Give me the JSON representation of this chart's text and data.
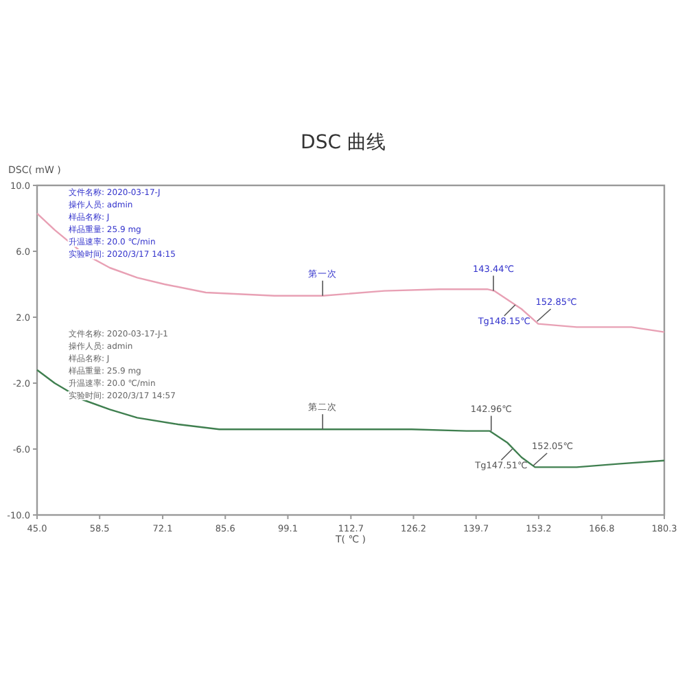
{
  "chart_data": {
    "type": "line",
    "title": "DSC 曲线",
    "xlabel": "T( ℃ )",
    "ylabel": "DSC( mW )",
    "xlim": [
      45.0,
      180.3
    ],
    "xticks": [
      {
        "value": 45.0,
        "label": "45.0"
      },
      58.5,
      72.1,
      85.6,
      99.1,
      112.7,
      126.2,
      139.7,
      153.2,
      166.8,
      180.3
    ],
    "ylim": [
      -10.0,
      10.0
    ],
    "yticks": [
      {
        "value": 10,
        "label": "10.0"
      },
      {
        "value": 6,
        "label": "6.0"
      },
      {
        "value": 2,
        "label": "2.0"
      },
      {
        "value": -2,
        "label": "-2.0"
      },
      {
        "value": -6,
        "label": "-6.0"
      },
      {
        "value": -10,
        "label": "-10.0"
      }
    ],
    "grid": false,
    "marker": "none",
    "line_style": "solid",
    "series": [
      {
        "color": "#e8a0b4",
        "x": [
          45,
          48.8,
          54.8,
          60.7,
          66.6,
          72.5,
          81.4,
          96.2,
          106.6,
          119.9,
          131.8,
          142.1,
          143.6,
          149.5,
          153.1,
          161.4,
          173.2,
          180.3
        ],
        "values": [
          8.3,
          7.3,
          5.9,
          5.0,
          4.4,
          4.0,
          3.5,
          3.3,
          3.3,
          3.6,
          3.7,
          3.7,
          3.6,
          2.5,
          1.6,
          1.4,
          1.4,
          1.1
        ]
      },
      {
        "color": "#3f7f4f",
        "x": [
          45,
          48.8,
          54.8,
          60.7,
          66.6,
          75.4,
          84.3,
          96.2,
          106.6,
          125.8,
          137.6,
          142.6,
          146.4,
          149.5,
          152.4,
          161.4,
          170.3,
          180.3
        ],
        "values": [
          -1.2,
          -2.0,
          -3.0,
          -3.6,
          -4.1,
          -4.5,
          -4.8,
          -4.8,
          -4.8,
          -4.8,
          -4.9,
          -4.9,
          -5.6,
          -6.5,
          -7.1,
          -7.1,
          -6.9,
          -6.7
        ]
      }
    ],
    "annotations": [
      "文件名称:  2020-03-17-J",
      "操作人员:  admin",
      "样品名称:  J",
      "样品重量:  25.9 mg",
      "升温速率:  20.0 ℃/min",
      "实验时间:  2020/3/17 14:15",
      "文件名称:  2020-03-17-J-1",
      "操作人员:  admin",
      "样品名称:  J",
      "样品重量:  25.9 mg",
      "升温速率:  20.0 ℃/min",
      "实验时间:  2020/3/17 14:57",
      {
        "text": "第一次",
        "x": 106.6,
        "y": 3.3
      },
      {
        "text": "143.44℃",
        "x": 143.44,
        "y": 3.6
      },
      {
        "text": "Tg148.15℃",
        "x": 148.15,
        "y": 2.75
      },
      {
        "text": "152.85℃",
        "x": 152.85,
        "y": 1.75
      },
      {
        "text": "第二次",
        "x": 106.6,
        "y": -4.8
      },
      {
        "text": "142.96℃",
        "x": 142.96,
        "y": -4.9
      },
      {
        "text": "Tg147.51℃",
        "x": 147.51,
        "y": -6.0
      },
      {
        "text": "152.05℃",
        "x": 152.05,
        "y": -7.0
      }
    ]
  }
}
